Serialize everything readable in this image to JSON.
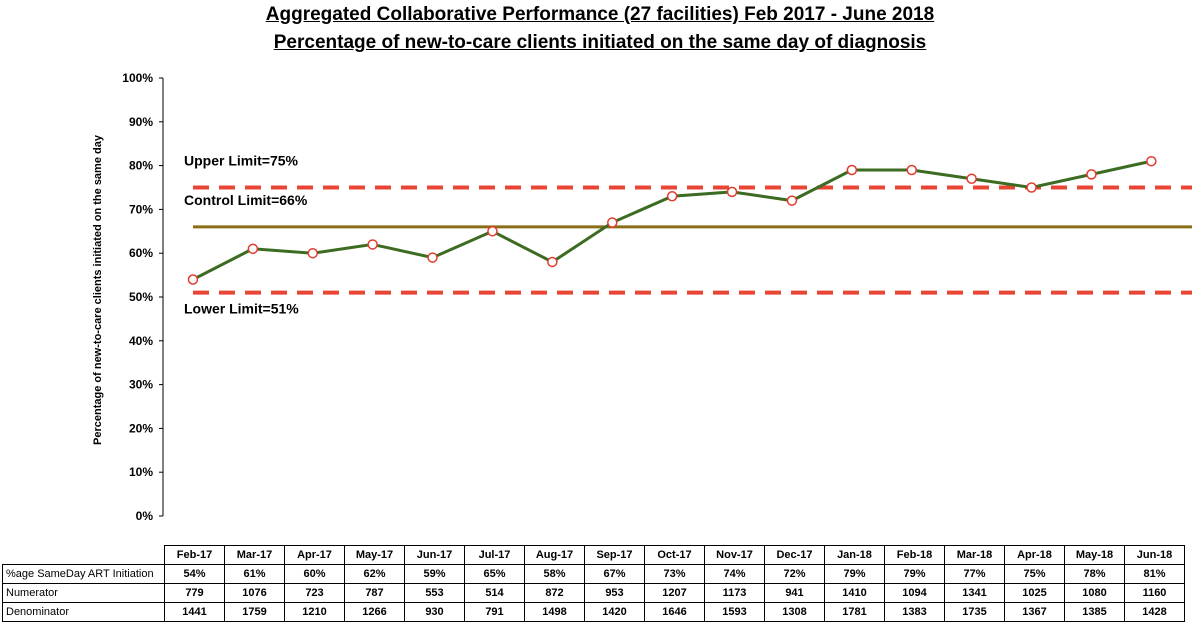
{
  "title": "Aggregated Collaborative Performance (27 facilities) Feb 2017 - June 2018",
  "subtitle": "Percentage of new-to-care clients initiated on the same day of diagnosis",
  "chart_data": {
    "type": "line",
    "ylabel": "Percentage of new-to-care clients initiated on the same day",
    "ylim": [
      0,
      100
    ],
    "yticks": [
      "0%",
      "10%",
      "20%",
      "30%",
      "40%",
      "50%",
      "60%",
      "70%",
      "80%",
      "90%",
      "100%"
    ],
    "categories": [
      "Feb-17",
      "Mar-17",
      "Apr-17",
      "May-17",
      "Jun-17",
      "Jul-17",
      "Aug-17",
      "Sep-17",
      "Oct-17",
      "Nov-17",
      "Dec-17",
      "Jan-18",
      "Feb-18",
      "Mar-18",
      "Apr-18",
      "May-18",
      "Jun-18"
    ],
    "series": [
      {
        "name": "%age SameDay ART Initiation",
        "values": [
          54,
          61,
          60,
          62,
          59,
          65,
          58,
          67,
          73,
          74,
          72,
          79,
          79,
          77,
          75,
          78,
          81
        ],
        "color": "#3c6b22",
        "marker_color": "#e23b2e"
      }
    ],
    "reference_lines": [
      {
        "label": "Upper Limit=75%",
        "value": 75,
        "style": "dashed",
        "color": "#e84535"
      },
      {
        "label": "Control Limit=66%",
        "value": 66,
        "style": "solid",
        "color": "#8a6d14"
      },
      {
        "label": "Lower Limit=51%",
        "value": 51,
        "style": "dashed",
        "color": "#e84535"
      }
    ],
    "grid": false,
    "legend": "none"
  },
  "table": {
    "header": [
      "Feb-17",
      "Mar-17",
      "Apr-17",
      "May-17",
      "Jun-17",
      "Jul-17",
      "Aug-17",
      "Sep-17",
      "Oct-17",
      "Nov-17",
      "Dec-17",
      "Jan-18",
      "Feb-18",
      "Mar-18",
      "Apr-18",
      "May-18",
      "Jun-18"
    ],
    "rows": [
      {
        "label": "%age SameDay ART Initiation",
        "values": [
          "54%",
          "61%",
          "60%",
          "62%",
          "59%",
          "65%",
          "58%",
          "67%",
          "73%",
          "74%",
          "72%",
          "79%",
          "79%",
          "77%",
          "75%",
          "78%",
          "81%"
        ]
      },
      {
        "label": "Numerator",
        "values": [
          "779",
          "1076",
          "723",
          "787",
          "553",
          "514",
          "872",
          "953",
          "1207",
          "1173",
          "941",
          "1410",
          "1094",
          "1341",
          "1025",
          "1080",
          "1160"
        ]
      },
      {
        "label": "Denominator",
        "values": [
          "1441",
          "1759",
          "1210",
          "1266",
          "930",
          "791",
          "1498",
          "1420",
          "1646",
          "1593",
          "1308",
          "1781",
          "1383",
          "1735",
          "1367",
          "1385",
          "1428"
        ]
      }
    ]
  }
}
